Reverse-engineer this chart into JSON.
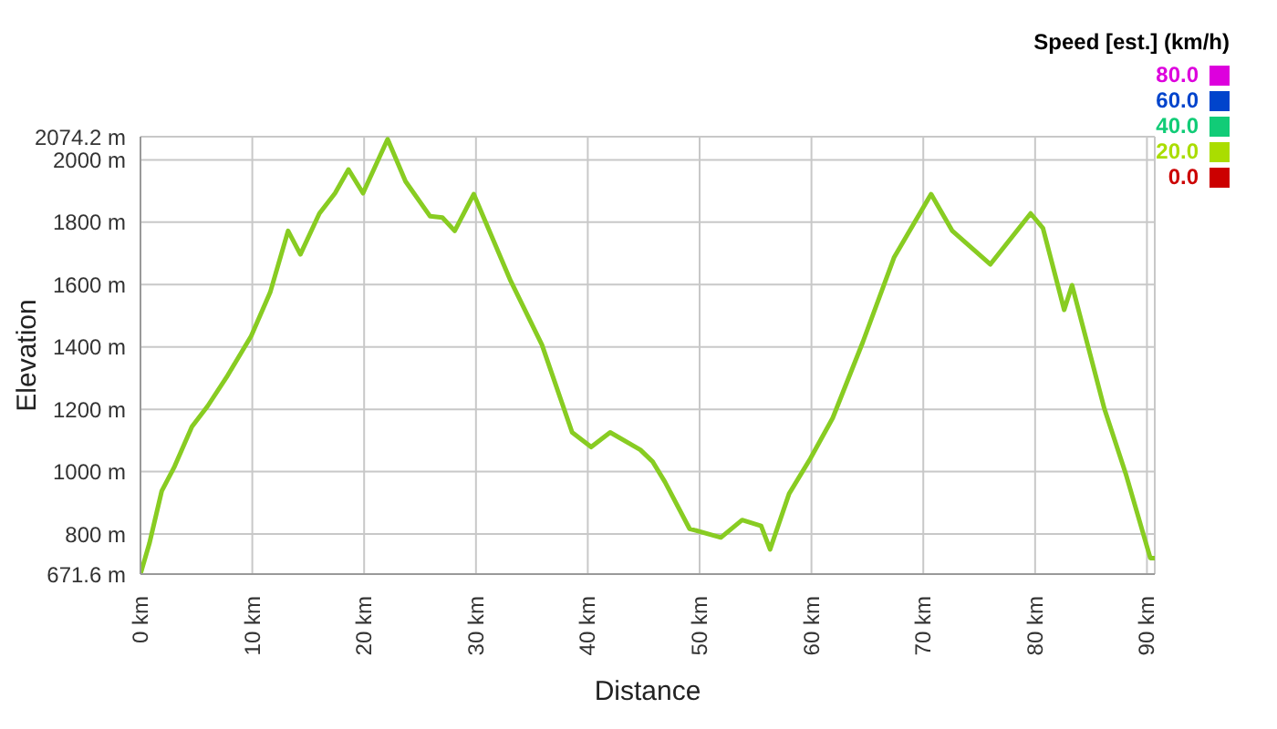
{
  "chart_data": {
    "type": "line",
    "xlabel": "Distance",
    "ylabel": "Elevation",
    "x": [
      0,
      0.8,
      1.9,
      3.0,
      4.6,
      6.0,
      7.7,
      9.9,
      11.6,
      13.2,
      14.3,
      16.0,
      17.4,
      18.6,
      19.9,
      22.1,
      23.7,
      25.9,
      27.0,
      28.1,
      29.8,
      33.1,
      35.9,
      38.6,
      40.3,
      42.0,
      44.7,
      45.8,
      46.9,
      49.1,
      51.9,
      53.8,
      55.5,
      56.3,
      58.0,
      59.9,
      61.9,
      64.6,
      67.4,
      70.7,
      72.6,
      76.0,
      79.6,
      80.7,
      82.6,
      83.3,
      86.2,
      88.1,
      90.3,
      90.7
    ],
    "series": [
      {
        "color": "#88cc22",
        "values": [
          672,
          770,
          938,
          1013,
          1144,
          1210,
          1303,
          1435,
          1575,
          1772,
          1697,
          1828,
          1893,
          1969,
          1893,
          2066,
          1931,
          1819,
          1815,
          1772,
          1890,
          1612,
          1407,
          1126,
          1079,
          1126,
          1070,
          1032,
          967,
          817,
          789,
          845,
          826,
          751,
          929,
          1042,
          1172,
          1416,
          1688,
          1890,
          1772,
          1665,
          1828,
          1781,
          1519,
          1598,
          1201,
          994,
          723,
          723
        ]
      }
    ],
    "xlim": [
      0,
      90.7
    ],
    "xticks": [
      {
        "value": 0,
        "label": "0 km"
      },
      {
        "value": 10,
        "label": "10 km"
      },
      {
        "value": 20,
        "label": "20 km"
      },
      {
        "value": 30,
        "label": "30 km"
      },
      {
        "value": 40,
        "label": "40 km"
      },
      {
        "value": 50,
        "label": "50 km"
      },
      {
        "value": 60,
        "label": "60 km"
      },
      {
        "value": 70,
        "label": "70 km"
      },
      {
        "value": 80,
        "label": "80 km"
      },
      {
        "value": 90,
        "label": "90 km"
      }
    ],
    "ylim": [
      671.6,
      2074.2
    ],
    "yticks": [
      {
        "value": 671.6,
        "label": "671.6 m"
      },
      {
        "value": 800,
        "label": "800 m"
      },
      {
        "value": 1000,
        "label": "1000 m"
      },
      {
        "value": 1200,
        "label": "1200 m"
      },
      {
        "value": 1400,
        "label": "1400 m"
      },
      {
        "value": 1600,
        "label": "1600 m"
      },
      {
        "value": 1800,
        "label": "1800 m"
      },
      {
        "value": 2000,
        "label": "2000 m"
      },
      {
        "value": 2074.2,
        "label": "2074.2 m"
      }
    ],
    "grid": true,
    "marker": "none",
    "line_style": "solid",
    "clabel": "Speed [est.] (km/h)",
    "clim": [
      0,
      80
    ],
    "cticks": [
      {
        "value": 80,
        "label": "80.0"
      },
      {
        "value": 60,
        "label": "60.0"
      },
      {
        "value": 40,
        "label": "40.0"
      },
      {
        "value": 20,
        "label": "20.0"
      },
      {
        "value": 0,
        "label": "0.0"
      }
    ],
    "colors": [
      "#dd00dd",
      "#0044cc",
      "#11cc77",
      "#aadd00",
      "#cc0000"
    ]
  }
}
